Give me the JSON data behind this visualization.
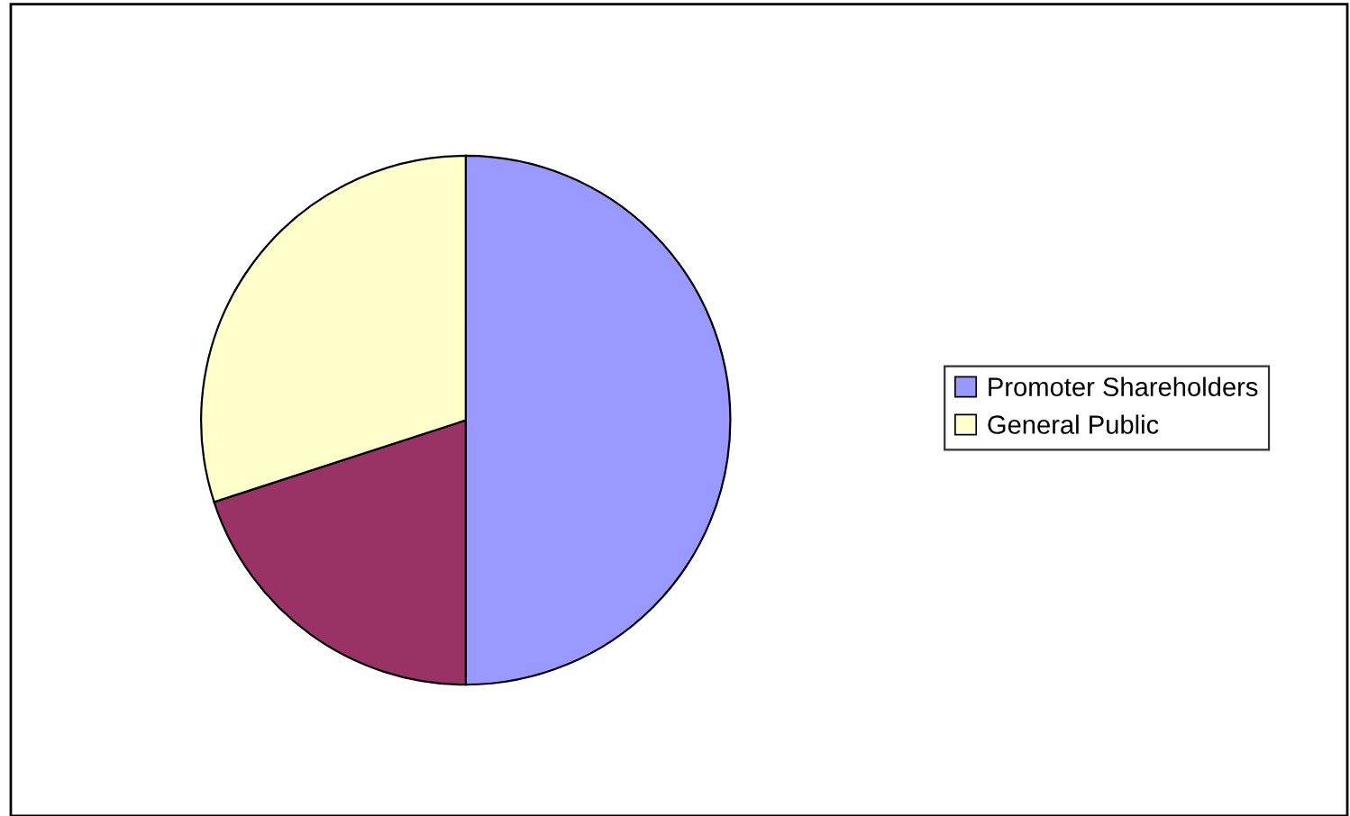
{
  "chart_data": {
    "type": "pie",
    "categories": [
      "Promoter Shareholders",
      null,
      "General Public"
    ],
    "values": [
      50,
      20,
      30
    ],
    "colors": [
      "#9999ff",
      "#993366",
      "#ffffcc"
    ],
    "legend": "right"
  }
}
